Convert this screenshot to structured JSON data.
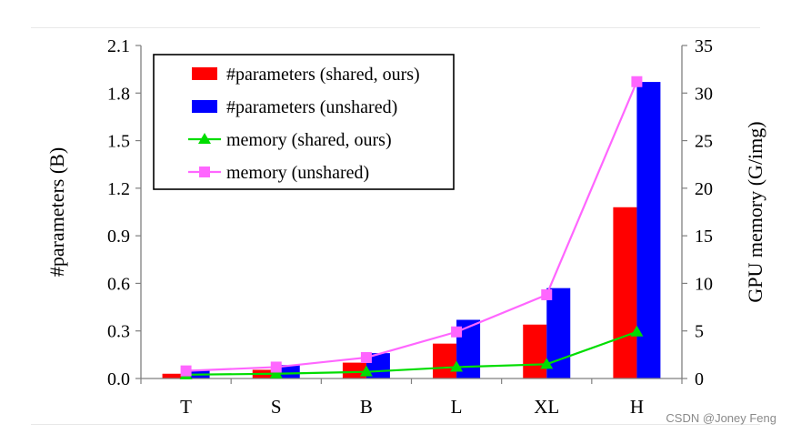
{
  "chart_data": {
    "type": "bar",
    "categories": [
      "T",
      "S",
      "B",
      "L",
      "XL",
      "H"
    ],
    "ylabel": "#parameters (B)",
    "y2label": "GPU memory (G/img)",
    "ylim": [
      0,
      2.1
    ],
    "yticks": [
      "0.0",
      "0.3",
      "0.6",
      "0.9",
      "1.2",
      "1.5",
      "1.8",
      "2.1"
    ],
    "y2lim": [
      0,
      35
    ],
    "y2ticks": [
      "0",
      "5",
      "10",
      "15",
      "20",
      "25",
      "30",
      "35"
    ],
    "grid": false,
    "legend_position": "top-left",
    "series": [
      {
        "name": "#parameters (shared, ours)",
        "kind": "bar",
        "axis": "left",
        "color": "#ff0000",
        "values": [
          0.03,
          0.055,
          0.1,
          0.22,
          0.34,
          1.08
        ]
      },
      {
        "name": "#parameters (unshared)",
        "kind": "bar",
        "axis": "left",
        "color": "#0000ff",
        "values": [
          0.055,
          0.085,
          0.16,
          0.37,
          0.57,
          1.87
        ]
      },
      {
        "name": "memory (shared, ours)",
        "kind": "line",
        "marker": "triangle",
        "axis": "right",
        "color": "#00dd00",
        "values": [
          0.4,
          0.5,
          0.7,
          1.2,
          1.5,
          4.9
        ]
      },
      {
        "name": "memory (unshared)",
        "kind": "line",
        "marker": "square",
        "axis": "right",
        "color": "#ff66ff",
        "values": [
          0.8,
          1.2,
          2.2,
          4.9,
          8.8,
          31.2
        ]
      }
    ]
  },
  "watermark": "CSDN @Joney Feng"
}
